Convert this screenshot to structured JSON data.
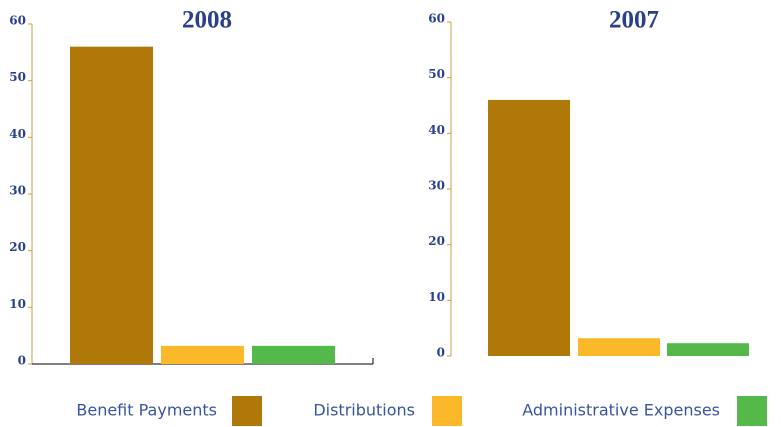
{
  "chart_data": [
    {
      "type": "bar",
      "title": "2008",
      "series": [
        {
          "name": "Benefit Payments",
          "color": "#b07808",
          "values": [
            56
          ]
        },
        {
          "name": "Distributions",
          "color": "#fbb829",
          "values": [
            3.2
          ]
        },
        {
          "name": "Administrative Expenses",
          "color": "#55b84a",
          "values": [
            3.2
          ]
        }
      ],
      "ylim": [
        0,
        60
      ],
      "yticks": [
        0,
        10,
        20,
        30,
        40,
        50,
        60
      ]
    },
    {
      "type": "bar",
      "title": "2007",
      "series": [
        {
          "name": "Benefit Payments",
          "color": "#b07808",
          "values": [
            46
          ]
        },
        {
          "name": "Distributions",
          "color": "#fbb829",
          "values": [
            3.2
          ]
        },
        {
          "name": "Administrative Expenses",
          "color": "#55b84a",
          "values": [
            2.3
          ]
        }
      ],
      "ylim": [
        0,
        60
      ],
      "yticks": [
        0,
        10,
        20,
        30,
        40,
        50,
        60
      ]
    }
  ]
}
